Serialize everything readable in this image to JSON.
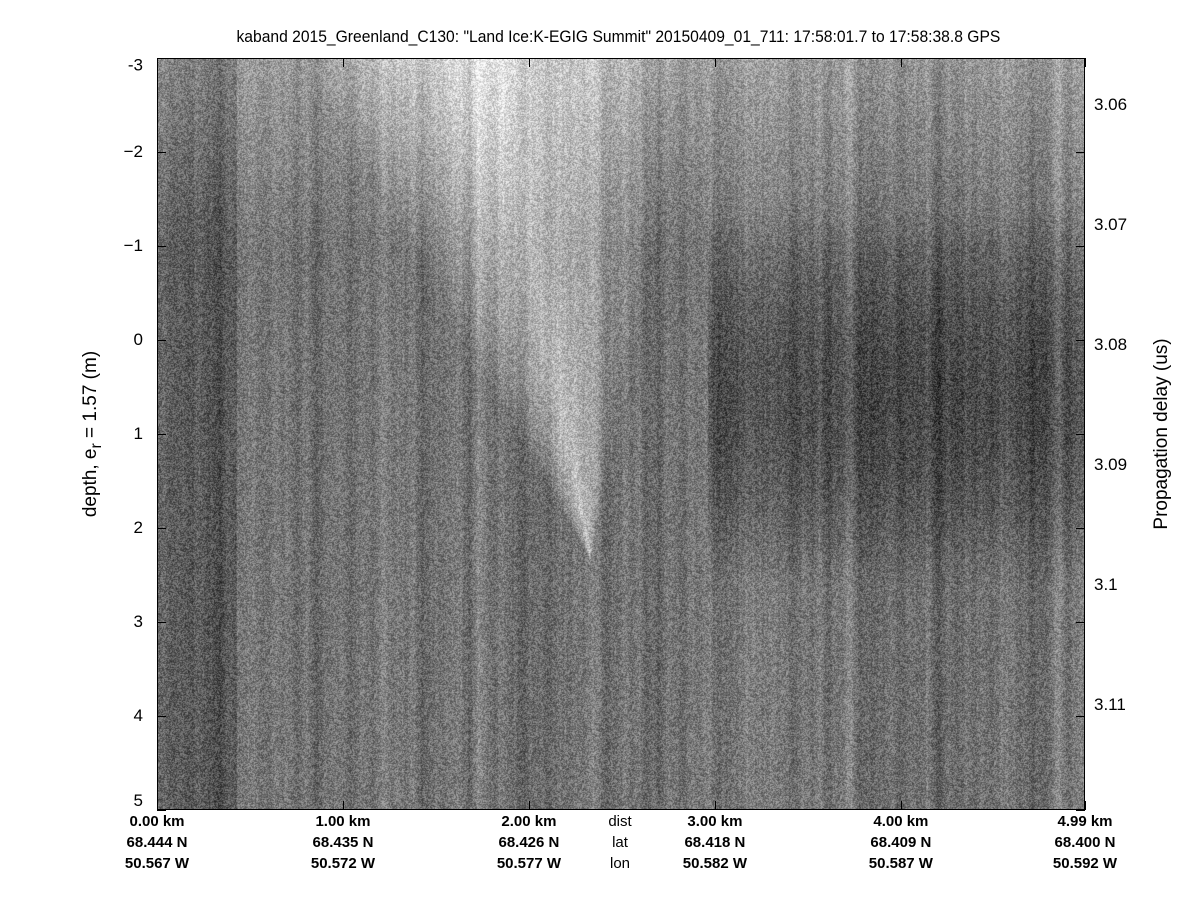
{
  "chart_data": {
    "type": "heatmap",
    "title": "kaband 2015_Greenland_C130: \"Land Ice:K-EGIG Summit\"  20150409_01_711: 17:58:01.7 to 17:58:38.8 GPS",
    "ylabel_main": "depth, e",
    "ylabel_sub": "r",
    "ylabel_rest": " = 1.57 (m)",
    "y2label": "Propagation delay (us)",
    "ylim": [
      -3,
      5
    ],
    "yticks": [
      "-3",
      "−2",
      "−1",
      "0",
      "1",
      "2",
      "3",
      "4",
      "5"
    ],
    "yvalues": [
      -3,
      -2,
      -1,
      0,
      1,
      2,
      3,
      4,
      5
    ],
    "y2ticks": [
      "3.06",
      "3.07",
      "3.08",
      "3.09",
      "3.1",
      "3.11"
    ],
    "y2values": [
      3.06,
      3.07,
      3.08,
      3.09,
      3.1,
      3.11
    ],
    "colormap": "gray",
    "x_row_labels": {
      "dist": "dist",
      "lat": "lat",
      "lon": "lon"
    },
    "xticks": [
      {
        "dist": "0.00 km",
        "lat": "68.444 N",
        "lon": "50.567 W",
        "km": 0.0
      },
      {
        "dist": "1.00 km",
        "lat": "68.435 N",
        "lon": "50.572 W",
        "km": 1.0
      },
      {
        "dist": "2.00 km",
        "lat": "68.426 N",
        "lon": "50.577 W",
        "km": 2.0
      },
      {
        "dist": "3.00 km",
        "lat": "68.418 N",
        "lon": "50.582 W",
        "km": 3.0
      },
      {
        "dist": "4.00 km",
        "lat": "68.409 N",
        "lon": "50.587 W",
        "km": 4.0
      },
      {
        "dist": "4.99 km",
        "lat": "68.400 N",
        "lon": "50.592 W",
        "km": 4.99
      }
    ]
  }
}
